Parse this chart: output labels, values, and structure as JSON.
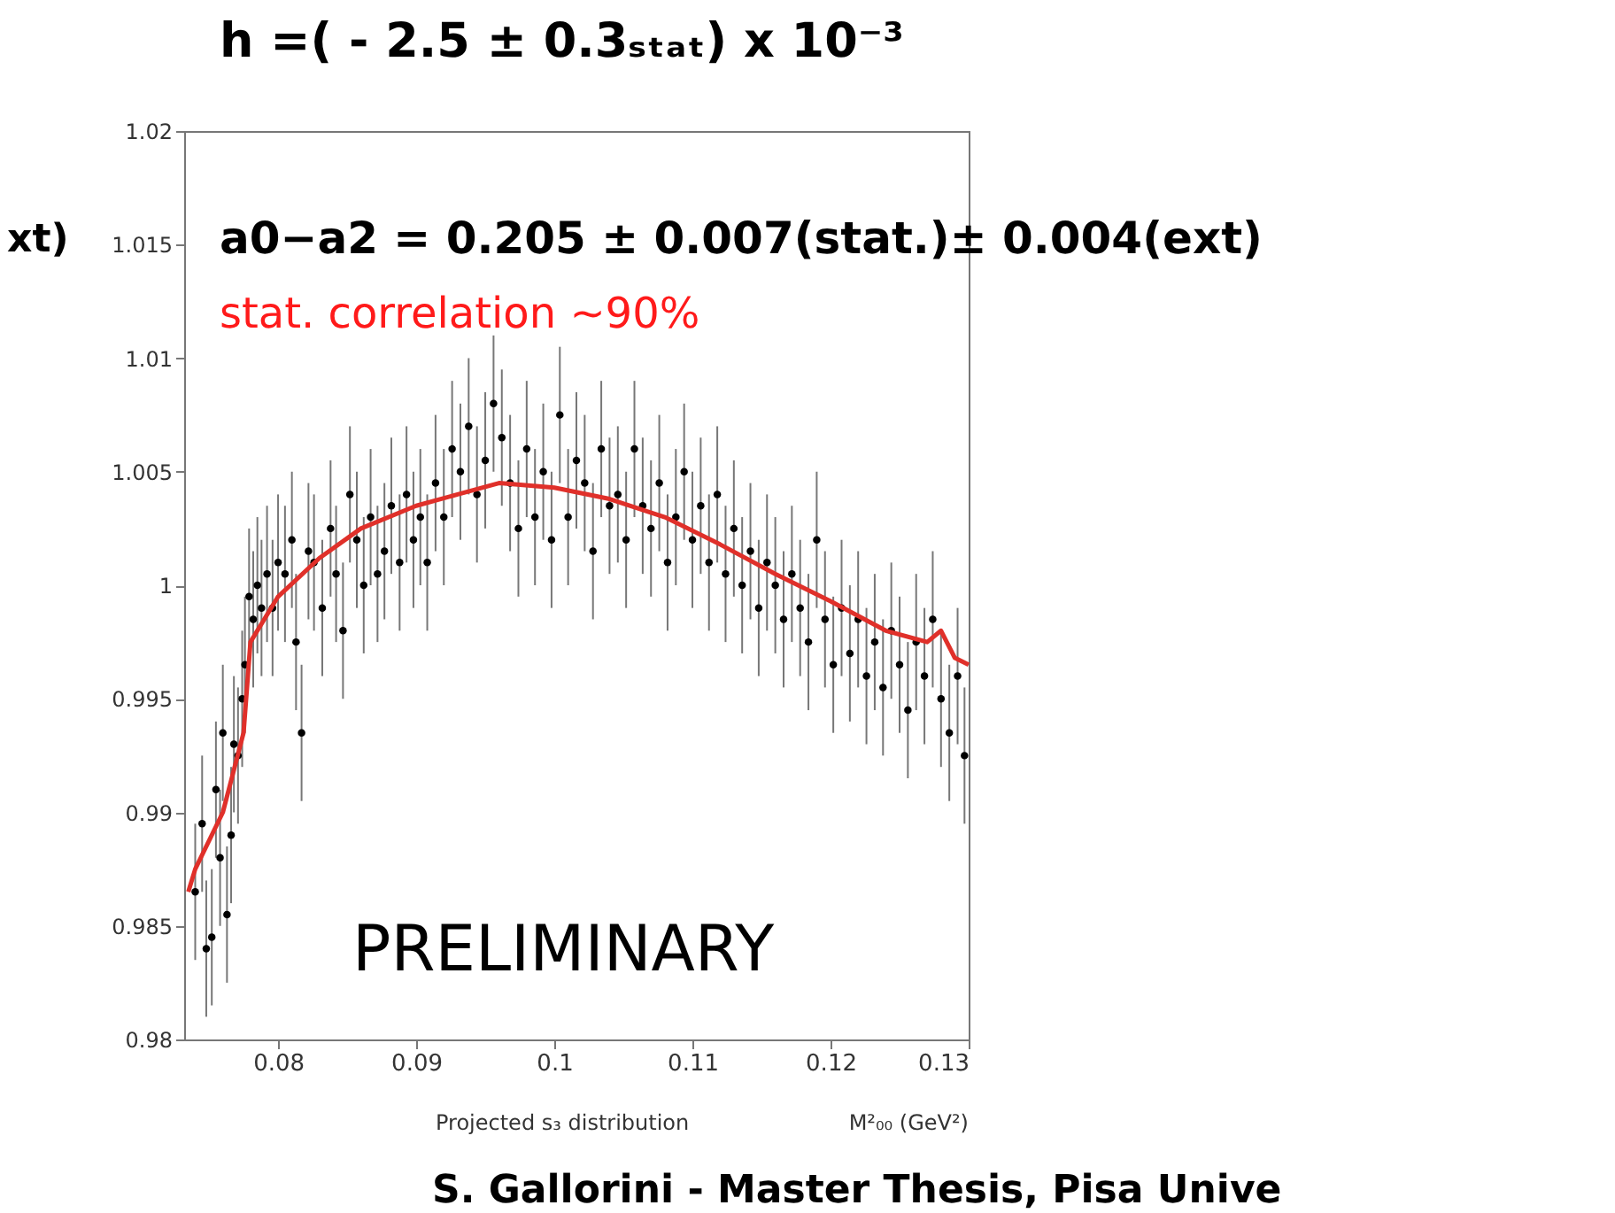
{
  "chart_data": {
    "type": "scatter",
    "title": "h =( - 2.5 ± 0.3ₛₜₐₜ) x 10⁻³",
    "xlabel": "M²₀₀ (GeV²)",
    "annotations": [
      "xt)",
      "a0−a2 = 0.205 ± 0.007(stat.)± 0.004(ext)",
      "stat. correlation ~90%",
      "PRELIMINARY",
      "Projected s₃ distribution",
      "S. Gallorini - Master Thesis, Pisa Unive"
    ],
    "xlim": [
      0.0732,
      0.13
    ],
    "xticks": [
      0.08,
      0.09,
      0.1,
      0.11,
      0.12,
      0.13
    ],
    "ylim": [
      0.98,
      1.02
    ],
    "yticks": [
      0.98,
      0.985,
      0.99,
      0.995,
      1,
      1.005,
      1.01,
      1.015,
      1.02
    ],
    "grid": false,
    "marker": "circle",
    "series": [
      {
        "color": "#000000",
        "x": [
          0.074,
          0.0745,
          0.0748,
          0.0752,
          0.0755,
          0.0758,
          0.076,
          0.0763,
          0.0766,
          0.0768,
          0.0771,
          0.0774,
          0.0776,
          0.0779,
          0.0782,
          0.0785,
          0.0788,
          0.0792,
          0.0796,
          0.08,
          0.0805,
          0.081,
          0.0813,
          0.0817,
          0.0822,
          0.0826,
          0.0832,
          0.0838,
          0.0842,
          0.0847,
          0.0852,
          0.0857,
          0.0862,
          0.0867,
          0.0872,
          0.0877,
          0.0882,
          0.0888,
          0.0893,
          0.0898,
          0.0903,
          0.0908,
          0.0914,
          0.092,
          0.0926,
          0.0932,
          0.0938,
          0.0944,
          0.095,
          0.0956,
          0.0962,
          0.0968,
          0.0974,
          0.098,
          0.0986,
          0.0992,
          0.0998,
          0.1004,
          0.101,
          0.1016,
          0.1022,
          0.1028,
          0.1034,
          0.104,
          0.1046,
          0.1052,
          0.1058,
          0.1064,
          0.107,
          0.1076,
          0.1082,
          0.1088,
          0.1094,
          0.11,
          0.1106,
          0.1112,
          0.1118,
          0.1124,
          0.113,
          0.1136,
          0.1142,
          0.1148,
          0.1154,
          0.116,
          0.1166,
          0.1172,
          0.1178,
          0.1184,
          0.119,
          0.1196,
          0.1202,
          0.1208,
          0.1214,
          0.122,
          0.1226,
          0.1232,
          0.1238,
          0.1244,
          0.125,
          0.1256,
          0.1262,
          0.1268,
          0.1274,
          0.128,
          0.1286,
          0.1292,
          0.1297
        ],
        "values": [
          0.9865,
          0.9895,
          0.984,
          0.9845,
          0.991,
          0.988,
          0.9935,
          0.9855,
          0.989,
          0.993,
          0.9925,
          0.995,
          0.9965,
          0.9995,
          0.9985,
          1.0,
          0.999,
          1.0005,
          0.999,
          1.001,
          1.0005,
          1.002,
          0.9975,
          0.9935,
          1.0015,
          1.001,
          0.999,
          1.0025,
          1.0005,
          0.998,
          1.004,
          1.002,
          1.0,
          1.003,
          1.0005,
          1.0015,
          1.0035,
          1.001,
          1.004,
          1.002,
          1.003,
          1.001,
          1.0045,
          1.003,
          1.006,
          1.005,
          1.007,
          1.004,
          1.0055,
          1.008,
          1.0065,
          1.0045,
          1.0025,
          1.006,
          1.003,
          1.005,
          1.002,
          1.0075,
          1.003,
          1.0055,
          1.0045,
          1.0015,
          1.006,
          1.0035,
          1.004,
          1.002,
          1.006,
          1.0035,
          1.0025,
          1.0045,
          1.001,
          1.003,
          1.005,
          1.002,
          1.0035,
          1.001,
          1.004,
          1.0005,
          1.0025,
          1.0,
          1.0015,
          0.999,
          1.001,
          1.0,
          0.9985,
          1.0005,
          0.999,
          0.9975,
          1.002,
          0.9985,
          0.9965,
          0.999,
          0.997,
          0.9985,
          0.996,
          0.9975,
          0.9955,
          0.998,
          0.9965,
          0.9945,
          0.9975,
          0.996,
          0.9985,
          0.995,
          0.9935,
          0.996,
          0.9925
        ],
        "errors": [
          0.003,
          0.003,
          0.003,
          0.003,
          0.003,
          0.003,
          0.003,
          0.003,
          0.003,
          0.003,
          0.003,
          0.003,
          0.003,
          0.003,
          0.003,
          0.003,
          0.003,
          0.003,
          0.003,
          0.003,
          0.003,
          0.003,
          0.003,
          0.003,
          0.003,
          0.003,
          0.003,
          0.003,
          0.003,
          0.003,
          0.003,
          0.003,
          0.003,
          0.003,
          0.003,
          0.003,
          0.003,
          0.003,
          0.003,
          0.003,
          0.003,
          0.003,
          0.003,
          0.003,
          0.003,
          0.003,
          0.003,
          0.003,
          0.003,
          0.003,
          0.003,
          0.003,
          0.003,
          0.003,
          0.003,
          0.003,
          0.003,
          0.003,
          0.003,
          0.003,
          0.003,
          0.003,
          0.003,
          0.003,
          0.003,
          0.003,
          0.003,
          0.003,
          0.003,
          0.003,
          0.003,
          0.003,
          0.003,
          0.003,
          0.003,
          0.003,
          0.003,
          0.003,
          0.003,
          0.003,
          0.003,
          0.003,
          0.003,
          0.003,
          0.003,
          0.003,
          0.003,
          0.003,
          0.003,
          0.003,
          0.003,
          0.003,
          0.003,
          0.003,
          0.003,
          0.003,
          0.003,
          0.003,
          0.003,
          0.003,
          0.003,
          0.003,
          0.003,
          0.003,
          0.003,
          0.003,
          0.003
        ]
      },
      {
        "type": "line",
        "color": "#e0302a",
        "marker": "none",
        "line_style": "solid",
        "x": [
          0.0735,
          0.074,
          0.076,
          0.0775,
          0.078,
          0.08,
          0.083,
          0.086,
          0.09,
          0.093,
          0.096,
          0.1,
          0.104,
          0.108,
          0.112,
          0.116,
          0.12,
          0.124,
          0.127,
          0.128,
          0.129,
          0.13
        ],
        "values": [
          0.9865,
          0.9875,
          0.99,
          0.9935,
          0.9975,
          0.9995,
          1.0012,
          1.0025,
          1.0035,
          1.004,
          1.0045,
          1.0043,
          1.0038,
          1.003,
          1.0018,
          1.0005,
          0.9993,
          0.998,
          0.9975,
          0.998,
          0.9968,
          0.9965
        ]
      }
    ]
  }
}
